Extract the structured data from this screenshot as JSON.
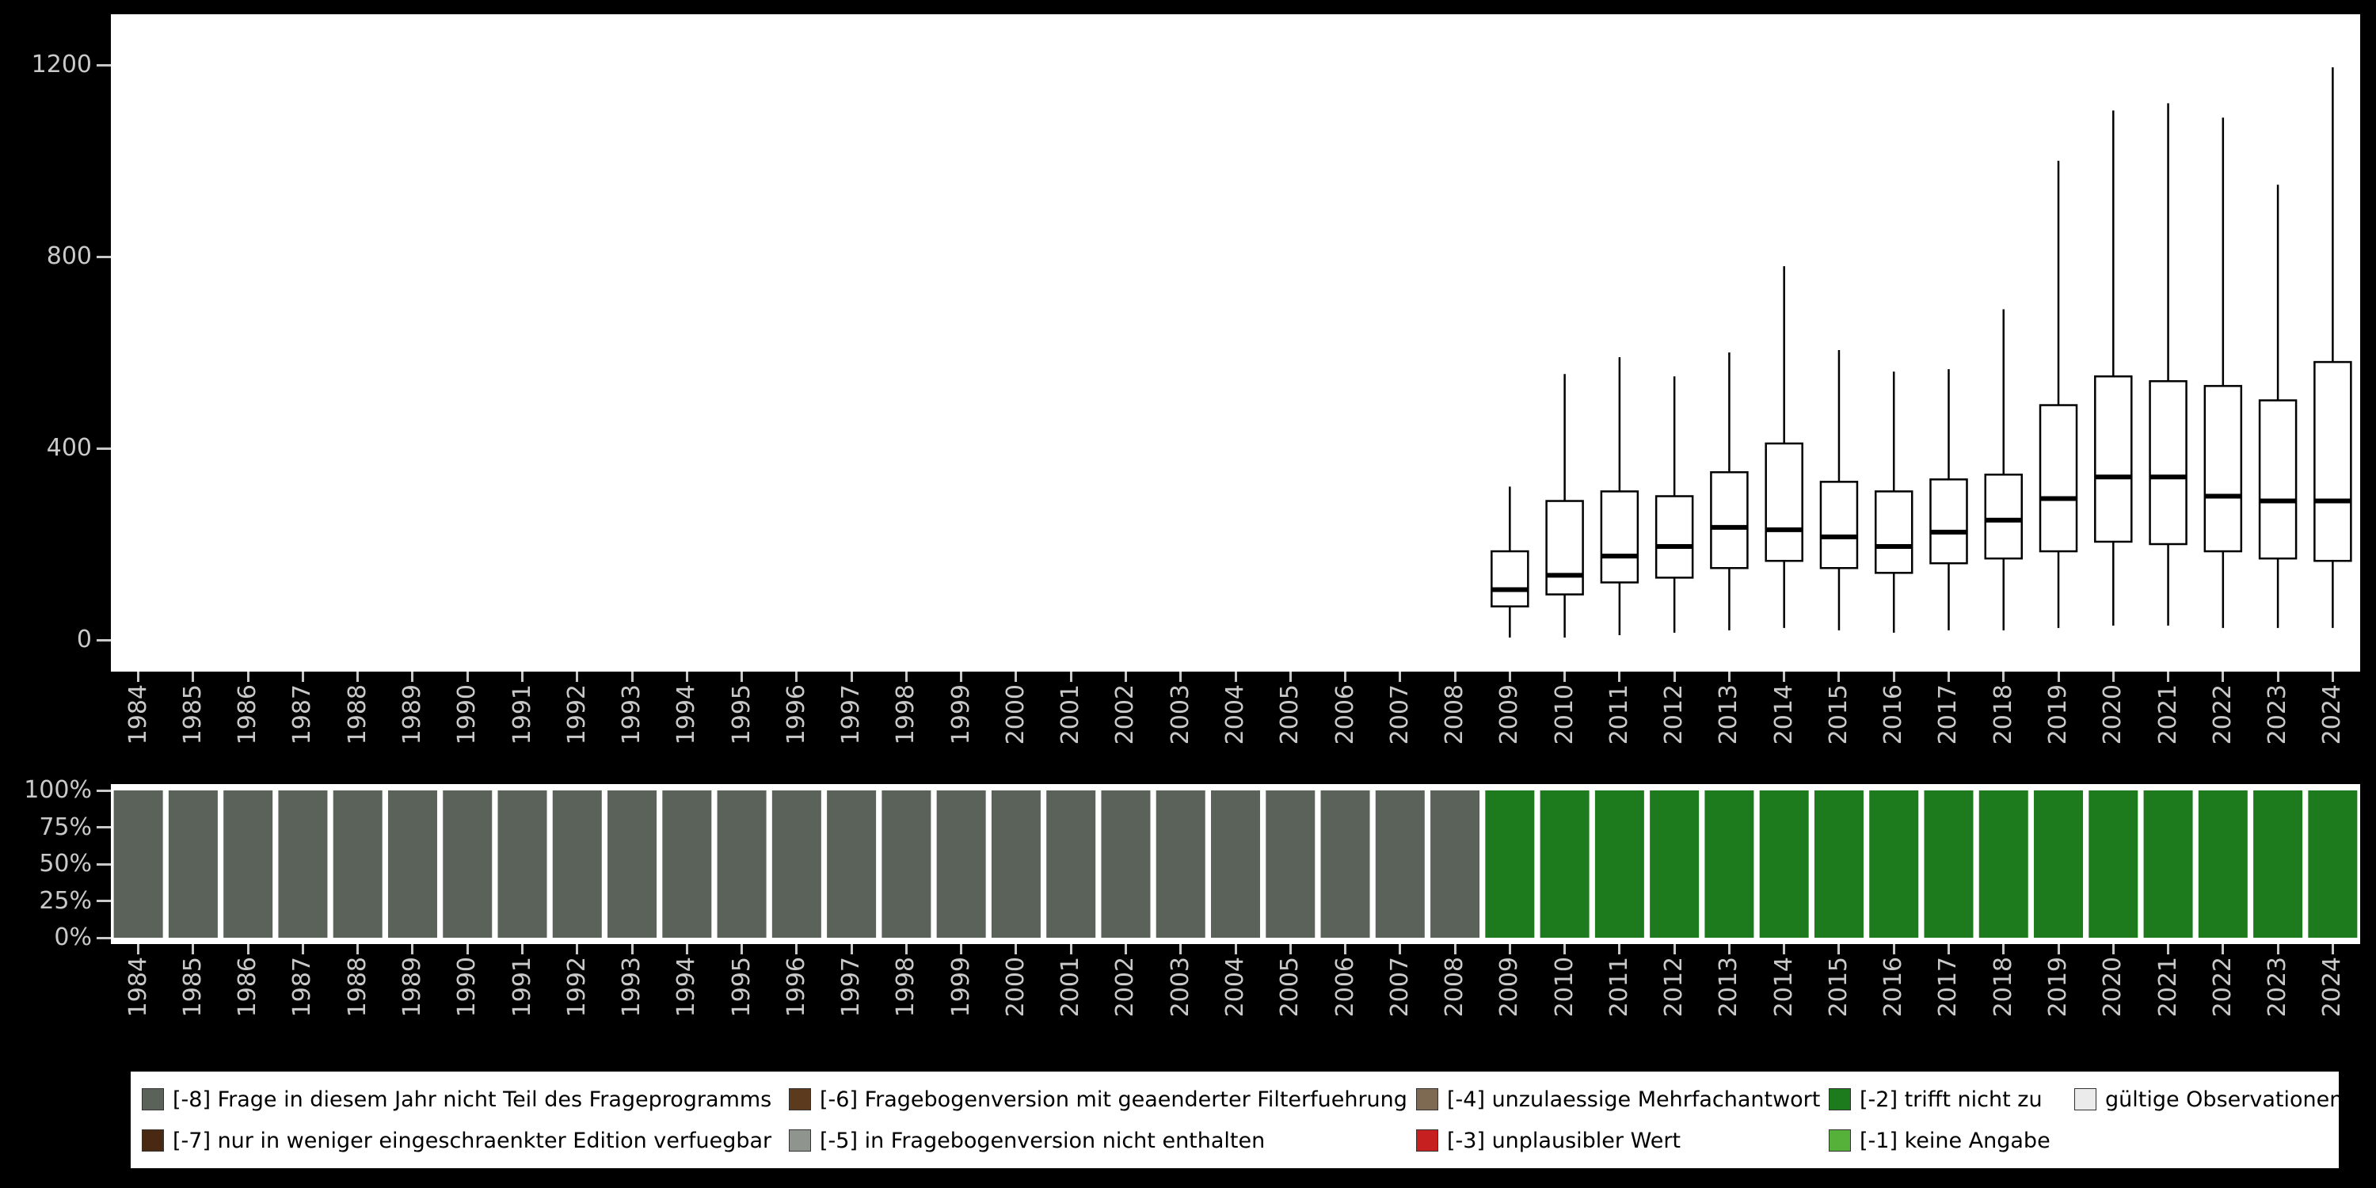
{
  "page_bg": "#000000",
  "panel_bg": "#ffffff",
  "axis": {
    "text_color": "#c9c9c9",
    "tick_color": "#c9c9c9"
  },
  "colors": {
    "-8": "#5a625a",
    "-7": "#4a2913",
    "-6": "#5b3a1d",
    "-5": "#8f948f",
    "-4": "#7e6a52",
    "-3": "#c62020",
    "-2": "#1d7a1d",
    "-1": "#55b13a",
    "valid": "#ebebeb"
  },
  "chart_data": [
    {
      "type": "boxplot",
      "title": "",
      "xlabel": "",
      "ylabel": "",
      "grid": false,
      "ylim": [
        0,
        1250
      ],
      "yticks": [
        0,
        400,
        800,
        1200
      ],
      "box_fill": "#ffffff",
      "box_stroke": "#000000",
      "categories": [
        "1984",
        "1985",
        "1986",
        "1987",
        "1988",
        "1989",
        "1990",
        "1991",
        "1992",
        "1993",
        "1994",
        "1995",
        "1996",
        "1997",
        "1998",
        "1999",
        "2000",
        "2001",
        "2002",
        "2003",
        "2004",
        "2005",
        "2006",
        "2007",
        "2008",
        "2009",
        "2010",
        "2011",
        "2012",
        "2013",
        "2014",
        "2015",
        "2016",
        "2017",
        "2018",
        "2019",
        "2020",
        "2021",
        "2022",
        "2023",
        "2024"
      ],
      "boxes": [
        null,
        null,
        null,
        null,
        null,
        null,
        null,
        null,
        null,
        null,
        null,
        null,
        null,
        null,
        null,
        null,
        null,
        null,
        null,
        null,
        null,
        null,
        null,
        null,
        null,
        [
          5,
          70,
          105,
          185,
          320
        ],
        [
          5,
          95,
          135,
          290,
          555
        ],
        [
          10,
          120,
          175,
          310,
          590
        ],
        [
          15,
          130,
          195,
          300,
          550
        ],
        [
          20,
          150,
          235,
          350,
          600
        ],
        [
          25,
          165,
          230,
          410,
          780
        ],
        [
          20,
          150,
          215,
          330,
          605
        ],
        [
          15,
          140,
          195,
          310,
          560
        ],
        [
          20,
          160,
          225,
          335,
          565
        ],
        [
          20,
          170,
          250,
          345,
          690
        ],
        [
          25,
          185,
          295,
          490,
          1000
        ],
        [
          30,
          205,
          340,
          550,
          1105
        ],
        [
          30,
          200,
          340,
          540,
          1120
        ],
        [
          25,
          185,
          300,
          530,
          1090
        ],
        [
          25,
          170,
          290,
          500,
          950
        ],
        [
          25,
          165,
          290,
          580,
          1195
        ]
      ]
    },
    {
      "type": "bar",
      "stacked": true,
      "unit": "percent",
      "title": "",
      "xlabel": "",
      "ylabel": "",
      "ytick_labels": [
        "100%",
        "75%",
        "50%",
        "25%",
        "0%"
      ],
      "categories": [
        "1984",
        "1985",
        "1986",
        "1987",
        "1988",
        "1989",
        "1990",
        "1991",
        "1992",
        "1993",
        "1994",
        "1995",
        "1996",
        "1997",
        "1998",
        "1999",
        "2000",
        "2001",
        "2002",
        "2003",
        "2004",
        "2005",
        "2006",
        "2007",
        "2008",
        "2009",
        "2010",
        "2011",
        "2012",
        "2013",
        "2014",
        "2015",
        "2016",
        "2017",
        "2018",
        "2019",
        "2020",
        "2021",
        "2022",
        "2023",
        "2024"
      ],
      "series": [
        {
          "name": "[-8] Frage in diesem Jahr nicht Teil des Frageprogramms",
          "color_key": "-8",
          "values": [
            100,
            100,
            100,
            100,
            100,
            100,
            100,
            100,
            100,
            100,
            100,
            100,
            100,
            100,
            100,
            100,
            100,
            100,
            100,
            100,
            100,
            100,
            100,
            100,
            100,
            0,
            0,
            0,
            0,
            0,
            0,
            0,
            0,
            0,
            0,
            0,
            0,
            0,
            0,
            0,
            0
          ]
        },
        {
          "name": "[-2] trifft nicht zu",
          "color_key": "-2",
          "values": [
            0,
            0,
            0,
            0,
            0,
            0,
            0,
            0,
            0,
            0,
            0,
            0,
            0,
            0,
            0,
            0,
            0,
            0,
            0,
            0,
            0,
            0,
            0,
            0,
            0,
            100,
            100,
            100,
            100,
            100,
            100,
            100,
            100,
            100,
            100,
            100,
            100,
            100,
            100,
            100,
            100
          ]
        }
      ]
    }
  ],
  "legend": {
    "items": [
      {
        "key": "-8",
        "row": 1,
        "col": 1,
        "color_key": "-8",
        "label": "[-8] Frage in diesem Jahr nicht Teil des Frageprogramms"
      },
      {
        "key": "-6",
        "row": 1,
        "col": 2,
        "color_key": "-6",
        "label": "[-6] Fragebogenversion mit geaenderter Filterfuehrung"
      },
      {
        "key": "-4",
        "row": 1,
        "col": 3,
        "color_key": "-4",
        "label": "[-4] unzulaessige Mehrfachantwort"
      },
      {
        "key": "-2",
        "row": 1,
        "col": 4,
        "color_key": "-2",
        "label": "[-2] trifft nicht zu"
      },
      {
        "key": "valid",
        "row": 1,
        "col": 5,
        "color_key": "valid",
        "label": "gültige Observationen"
      },
      {
        "key": "-7",
        "row": 2,
        "col": 1,
        "color_key": "-7",
        "label": "[-7] nur in weniger eingeschraenkter Edition verfuegbar"
      },
      {
        "key": "-5",
        "row": 2,
        "col": 2,
        "color_key": "-5",
        "label": "[-5] in Fragebogenversion nicht enthalten"
      },
      {
        "key": "-3",
        "row": 2,
        "col": 3,
        "color_key": "-3",
        "label": "[-3] unplausibler Wert"
      },
      {
        "key": "-1",
        "row": 2,
        "col": 4,
        "color_key": "-1",
        "label": "[-1] keine Angabe"
      }
    ]
  }
}
